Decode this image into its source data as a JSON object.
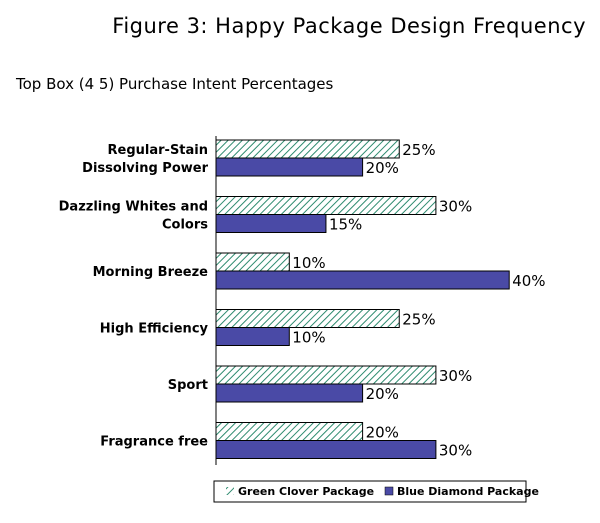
{
  "figure": {
    "title": "Figure 3: Happy Package Design Frequency",
    "subtitle": "Top Box (4 5) Purchase Intent Percentages"
  },
  "colors": {
    "green_stripe": "#2e8b6f",
    "blue_fill": "#4a4aa6",
    "bar_border": "#000000"
  },
  "chart_data": {
    "type": "bar",
    "orientation": "horizontal",
    "categories": [
      [
        "Regular-Stain",
        "Dissolving Power"
      ],
      [
        "Dazzling Whites and",
        "Colors"
      ],
      [
        "Morning Breeze"
      ],
      [
        "High Efficiency"
      ],
      [
        "Sport"
      ],
      [
        "Fragrance free"
      ]
    ],
    "series": [
      {
        "name": "Green Clover Package",
        "values": [
          25,
          30,
          10,
          25,
          30,
          20
        ],
        "labels": [
          "25%",
          "30%",
          "10%",
          "25%",
          "30%",
          "20%"
        ]
      },
      {
        "name": "Blue Diamond Package",
        "values": [
          20,
          15,
          40,
          10,
          20,
          30
        ],
        "labels": [
          "20%",
          "15%",
          "40%",
          "10%",
          "20%",
          "30%"
        ]
      }
    ],
    "xlim": [
      0,
      40
    ],
    "unit": "%",
    "legend": "bottom"
  }
}
